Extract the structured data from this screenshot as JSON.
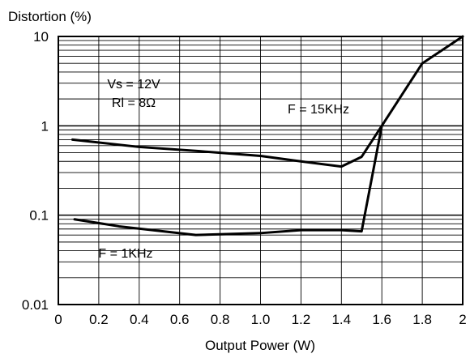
{
  "chart_data": {
    "type": "line",
    "title": "",
    "ylabel": "Distortion (%)",
    "xlabel": "Output Power (W)",
    "x_scale": "linear",
    "y_scale": "log",
    "xlim": [
      0,
      2
    ],
    "ylim": [
      0.01,
      10
    ],
    "x_ticks": [
      0,
      0.2,
      0.4,
      0.6,
      0.8,
      1.0,
      1.2,
      1.4,
      1.6,
      1.8,
      2
    ],
    "x_tick_labels": [
      "0",
      "0.2",
      "0.4",
      "0.6",
      "0.8",
      "1.0",
      "1.2",
      "1.4",
      "1.6",
      "1.8",
      "2"
    ],
    "y_ticks": [
      10,
      1,
      0.1,
      0.01
    ],
    "y_tick_labels": [
      "10",
      "1",
      "0.1",
      "0.01"
    ],
    "grid": true,
    "annotations": {
      "conditions_line1": "Vs = 12V",
      "conditions_line2": "Rl = 8Ω",
      "label_15khz": "F = 15KHz",
      "label_1khz": "F = 1KHz"
    },
    "series": [
      {
        "label": "F = 15KHz",
        "x": [
          0.07,
          0.4,
          0.7,
          1.0,
          1.2,
          1.4,
          1.5,
          1.6,
          1.8,
          2.0
        ],
        "y": [
          0.7,
          0.58,
          0.52,
          0.46,
          0.4,
          0.35,
          0.45,
          1.0,
          5.0,
          11.0
        ]
      },
      {
        "label": "F = 1KHz",
        "x": [
          0.08,
          0.3,
          0.68,
          1.0,
          1.2,
          1.4,
          1.5,
          1.6
        ],
        "y": [
          0.09,
          0.075,
          0.06,
          0.063,
          0.068,
          0.068,
          0.066,
          1.0
        ]
      }
    ],
    "colors": {
      "line": "#000000",
      "grid": "#000000",
      "background": "#ffffff"
    }
  }
}
